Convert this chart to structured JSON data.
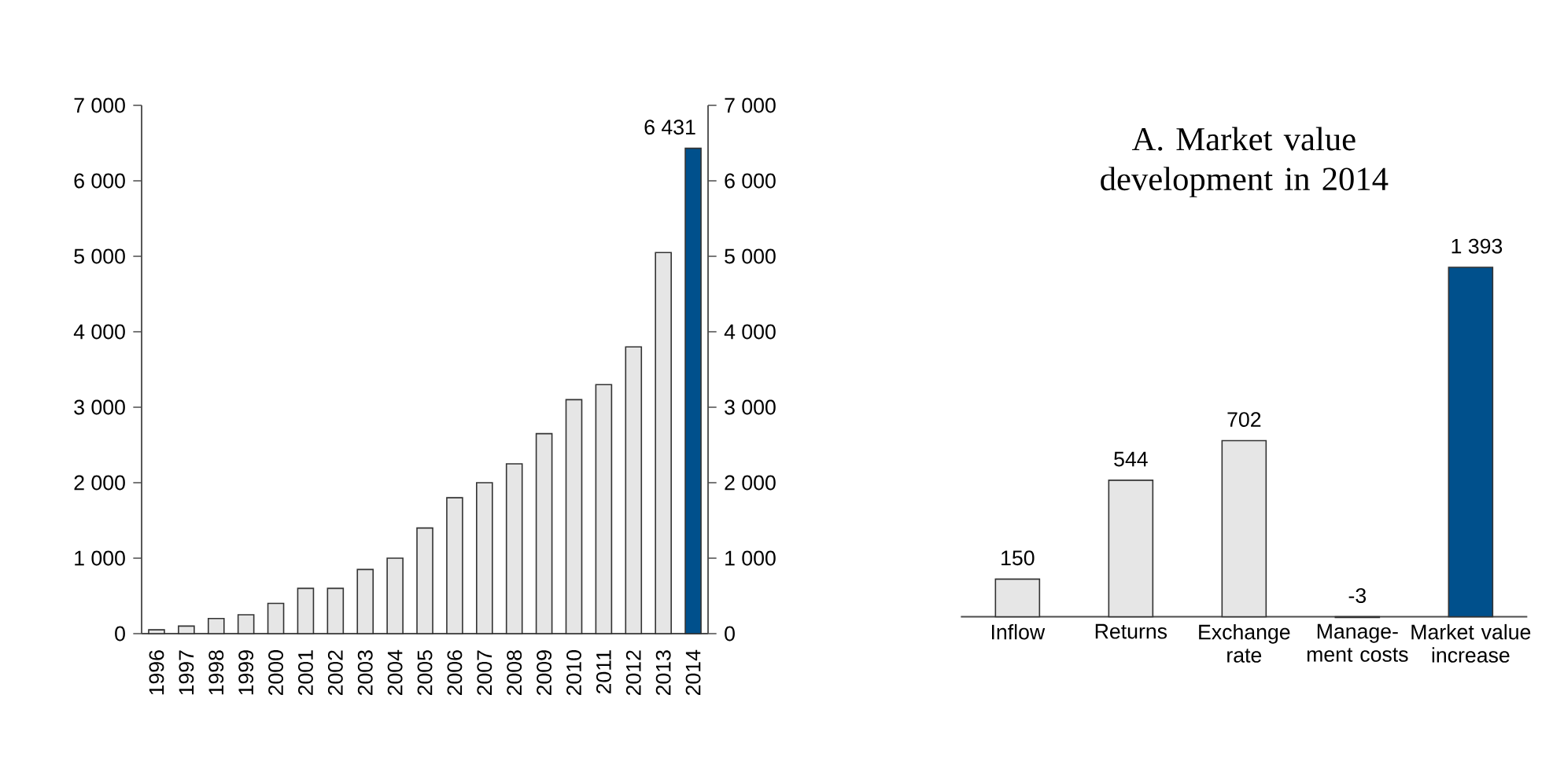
{
  "chart_data": [
    {
      "type": "bar",
      "categories": [
        "1996",
        "1997",
        "1998",
        "1999",
        "2000",
        "2001",
        "2002",
        "2003",
        "2004",
        "2005",
        "2006",
        "2007",
        "2008",
        "2009",
        "2010",
        "2011",
        "2012",
        "2013",
        "2014"
      ],
      "values": [
        50,
        100,
        200,
        250,
        400,
        600,
        600,
        850,
        1000,
        1400,
        1800,
        2000,
        2250,
        2650,
        3100,
        3300,
        3800,
        5050,
        6431
      ],
      "colors": [
        "#e6e6e6",
        "#e6e6e6",
        "#e6e6e6",
        "#e6e6e6",
        "#e6e6e6",
        "#e6e6e6",
        "#e6e6e6",
        "#e6e6e6",
        "#e6e6e6",
        "#e6e6e6",
        "#e6e6e6",
        "#e6e6e6",
        "#e6e6e6",
        "#e6e6e6",
        "#e6e6e6",
        "#e6e6e6",
        "#e6e6e6",
        "#e6e6e6",
        "#00508c"
      ],
      "value_labels": [
        null,
        null,
        null,
        null,
        null,
        null,
        null,
        null,
        null,
        null,
        null,
        null,
        null,
        null,
        null,
        null,
        null,
        null,
        "6 431"
      ],
      "ylim": [
        0,
        7000
      ],
      "yticks": [
        0,
        {
          "value": 1000,
          "label": "1 000"
        },
        {
          "value": 2000,
          "label": "2 000"
        },
        {
          "value": 3000,
          "label": "3 000"
        },
        {
          "value": 4000,
          "label": "4 000"
        },
        {
          "value": 5000,
          "label": "5 000"
        },
        {
          "value": 6000,
          "label": "6 000"
        },
        {
          "value": 7000,
          "label": "7 000"
        }
      ],
      "y2lim": [
        0,
        7000
      ],
      "y2ticks": [
        0,
        {
          "value": 1000,
          "label": "1 000"
        },
        {
          "value": 2000,
          "label": "2 000"
        },
        {
          "value": 3000,
          "label": "3 000"
        },
        {
          "value": 4000,
          "label": "4 000"
        },
        {
          "value": 5000,
          "label": "5 000"
        },
        {
          "value": 6000,
          "label": "6 000"
        },
        {
          "value": 7000,
          "label": "7 000"
        }
      ]
    },
    {
      "type": "bar",
      "title": "A. Market value development in 2014",
      "categories": [
        "Inflow",
        "Returns",
        "Exchange rate",
        "Manage-ment costs",
        "Market value increase"
      ],
      "values": [
        150,
        544,
        702,
        -3,
        1393
      ],
      "colors": [
        "#e6e6e6",
        "#e6e6e6",
        "#e6e6e6",
        "#e6e6e6",
        "#00508c"
      ],
      "value_labels": [
        "150",
        "544",
        "702",
        "-3",
        "1 393"
      ],
      "tick_labels": "x"
    }
  ]
}
